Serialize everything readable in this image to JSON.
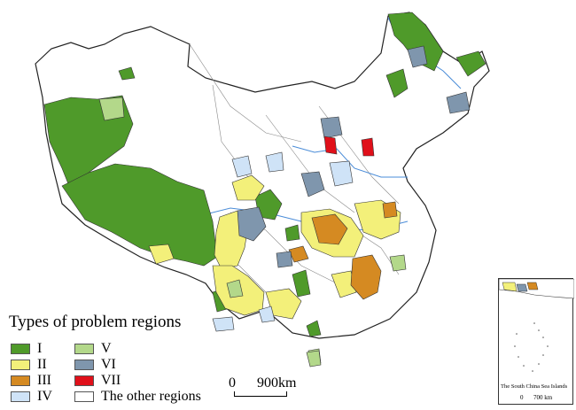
{
  "legend": {
    "title": "Types of problem regions",
    "items": [
      {
        "label": "I",
        "color": "#4f9a2a"
      },
      {
        "label": "II",
        "color": "#f3f07a"
      },
      {
        "label": "III",
        "color": "#d58a22"
      },
      {
        "label": "IV",
        "color": "#cfe3f7"
      },
      {
        "label": "V",
        "color": "#b3d88a"
      },
      {
        "label": "VI",
        "color": "#7f96ad"
      },
      {
        "label": "VII",
        "color": "#e0101a"
      },
      {
        "label": "The other regions",
        "color": "#ffffff"
      }
    ]
  },
  "scale_bar": {
    "start": "0",
    "end": "900",
    "unit": "km"
  },
  "inset": {
    "caption": "The South China Sea Islands",
    "scale_start": "0",
    "scale_end": "700 km"
  }
}
